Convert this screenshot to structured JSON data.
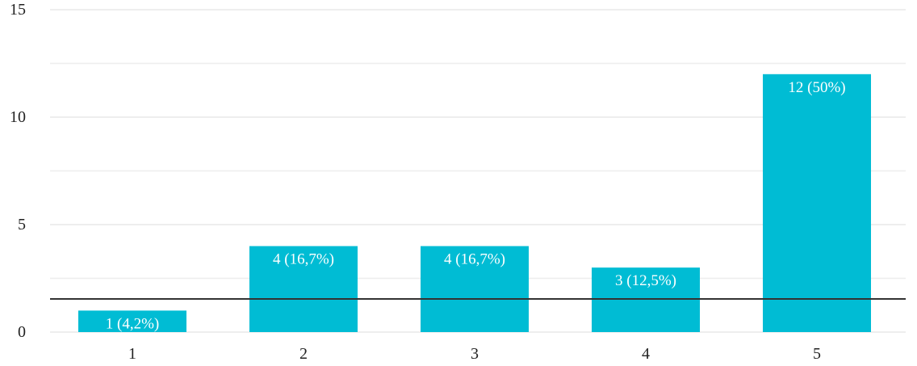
{
  "chart_data": {
    "type": "bar",
    "title": "",
    "xlabel": "",
    "ylabel": "",
    "categories": [
      "1",
      "2",
      "3",
      "4",
      "5"
    ],
    "values": [
      1,
      4,
      4,
      3,
      12
    ],
    "data_labels": [
      "1 (4,2%)",
      "4 (16,7%)",
      "4 (16,7%)",
      "3 (12,5%)",
      "12 (50%)"
    ],
    "ylim": [
      0,
      15
    ],
    "y_ticks": [
      "0",
      "5",
      "10",
      "15"
    ],
    "grid": true,
    "legend": "none",
    "bar_color": "#00BCD4",
    "grid_color": "#eeeeee",
    "baseline_color": "#333333",
    "label_color": "#ffffff",
    "tick_label_color": "#222222"
  }
}
